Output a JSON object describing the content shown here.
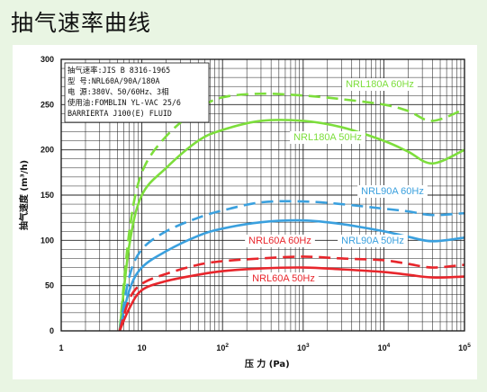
{
  "title": "抽气速率曲线",
  "chart_data": {
    "type": "line",
    "xlabel": "压 力 (Pa)",
    "ylabel": "抽气速度 (m³/h)",
    "xscale": "log",
    "xlim": [
      1,
      100000
    ],
    "ylim": [
      0,
      300
    ],
    "grid": true,
    "y_ticks": [
      "0",
      "50",
      "100",
      "150",
      "200",
      "250",
      "300"
    ],
    "x_ticks": [
      {
        "base": "1",
        "exp": ""
      },
      {
        "base": "10",
        "exp": ""
      },
      {
        "base": "10",
        "exp": "2"
      },
      {
        "base": "10",
        "exp": "3"
      },
      {
        "base": "10",
        "exp": "4"
      },
      {
        "base": "10",
        "exp": "5"
      }
    ],
    "notes": [
      "抽气速率:JIS B 8316-1965",
      "型  号:NRL60A/90A/180A",
      "电  源:380V、50/60Hz、3相",
      "使用油:FOMBLIN YL-VAC 25/6",
      "  BARRIERTA J100(E) FLUID"
    ],
    "series": [
      {
        "name": "NRL180A 60Hz",
        "color": "#7dde3c",
        "dashed": true,
        "x": [
          5.3,
          7,
          10,
          20,
          50,
          100,
          300,
          1000,
          3000,
          10000,
          20000,
          40000,
          100000
        ],
        "y": [
          0,
          110,
          175,
          215,
          245,
          258,
          262,
          260,
          256,
          250,
          243,
          232,
          245
        ]
      },
      {
        "name": "NRL180A 50Hz",
        "color": "#7dde3c",
        "dashed": false,
        "x": [
          5.3,
          7,
          10,
          20,
          50,
          100,
          300,
          1000,
          3000,
          10000,
          20000,
          40000,
          100000
        ],
        "y": [
          0,
          95,
          150,
          180,
          210,
          222,
          232,
          232,
          225,
          210,
          198,
          185,
          200
        ]
      },
      {
        "name": "NRL90A 60Hz",
        "color": "#3aa0de",
        "dashed": true,
        "x": [
          5.3,
          7,
          10,
          20,
          50,
          100,
          300,
          1000,
          3000,
          10000,
          20000,
          40000,
          100000
        ],
        "y": [
          0,
          60,
          90,
          110,
          125,
          133,
          142,
          143,
          140,
          135,
          132,
          128,
          130
        ]
      },
      {
        "name": "NRL90A 50Hz",
        "color": "#3aa0de",
        "dashed": false,
        "x": [
          5.3,
          7,
          10,
          20,
          50,
          100,
          300,
          1000,
          3000,
          10000,
          20000,
          40000,
          100000
        ],
        "y": [
          0,
          45,
          70,
          88,
          105,
          113,
          120,
          122,
          118,
          110,
          104,
          99,
          103
        ]
      },
      {
        "name": "NRL60A 60Hz",
        "color": "#e8262c",
        "dashed": true,
        "x": [
          5.3,
          7,
          10,
          20,
          50,
          100,
          300,
          1000,
          3000,
          10000,
          20000,
          40000,
          100000
        ],
        "y": [
          0,
          35,
          52,
          63,
          73,
          77,
          80,
          82,
          80,
          78,
          74,
          70,
          73
        ]
      },
      {
        "name": "NRL60A 50Hz",
        "color": "#e8262c",
        "dashed": false,
        "x": [
          5.3,
          7,
          10,
          20,
          50,
          100,
          300,
          1000,
          3000,
          10000,
          20000,
          40000,
          100000
        ],
        "y": [
          0,
          25,
          45,
          55,
          62,
          66,
          69,
          70,
          68,
          65,
          62,
          59,
          60
        ]
      }
    ]
  }
}
